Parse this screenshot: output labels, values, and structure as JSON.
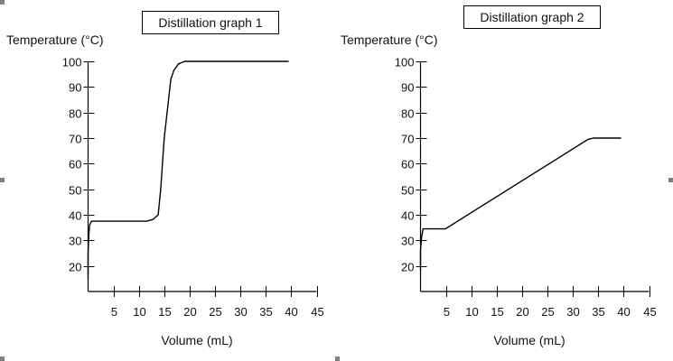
{
  "chart_data": [
    {
      "type": "line",
      "title": "Distillation graph 1",
      "xlabel": "Volume (mL)",
      "ylabel": "Temperature (°C)",
      "xlim": [
        0,
        45
      ],
      "ylim": [
        10,
        100
      ],
      "x_ticks": [
        "5",
        "10",
        "15",
        "20",
        "25",
        "30",
        "35",
        "40",
        "45"
      ],
      "y_ticks": [
        "20",
        "30",
        "40",
        "50",
        "60",
        "70",
        "80",
        "90",
        "100"
      ],
      "grid": false,
      "series": [
        {
          "x": [
            0,
            0,
            0.15,
            0.3,
            0.7,
            2,
            11.5,
            12.8,
            13.8,
            14.3,
            15,
            16.3,
            16.9,
            17.8,
            19,
            39.5
          ],
          "y": [
            15,
            25,
            32,
            36,
            37.5,
            37.5,
            37.5,
            38.2,
            40,
            50,
            70,
            93,
            96.5,
            99,
            100,
            100
          ]
        }
      ]
    },
    {
      "type": "line",
      "title": "Distillation graph 2",
      "xlabel": "Volume (mL)",
      "ylabel": "Temperature (°C)",
      "xlim": [
        0,
        45
      ],
      "ylim": [
        10,
        100
      ],
      "x_ticks": [
        "5",
        "10",
        "15",
        "20",
        "25",
        "30",
        "35",
        "40",
        "45"
      ],
      "y_ticks": [
        "20",
        "30",
        "40",
        "50",
        "60",
        "70",
        "80",
        "90",
        "100"
      ],
      "grid": false,
      "series": [
        {
          "x": [
            0,
            0,
            0.2,
            0.5,
            4.9,
            33,
            34,
            39.5
          ],
          "y": [
            18,
            26,
            31,
            34.5,
            34.5,
            69.5,
            70,
            70
          ]
        }
      ]
    }
  ]
}
